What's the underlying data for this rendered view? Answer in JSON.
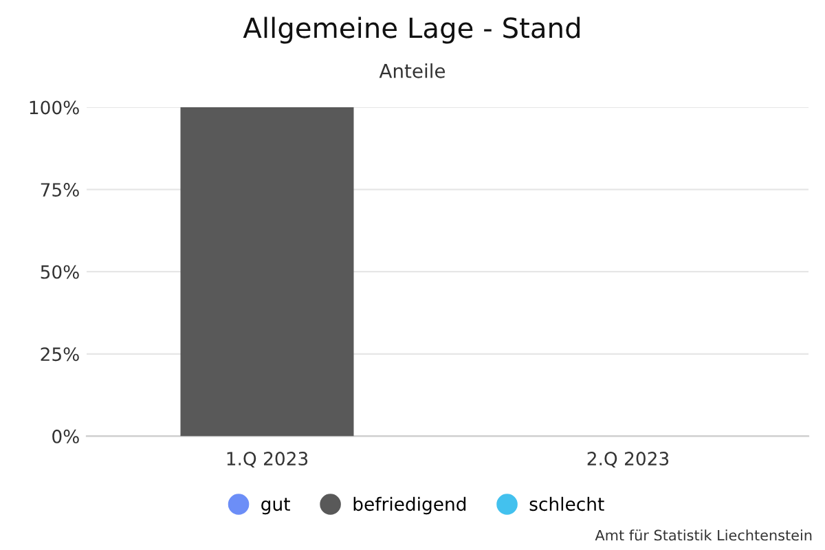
{
  "chart_data": {
    "type": "bar",
    "title": "Allgemeine Lage - Stand",
    "subtitle": "Anteile",
    "categories": [
      "1.Q 2023",
      "2.Q 2023"
    ],
    "series": [
      {
        "name": "gut",
        "color": "#6c8ef7",
        "values": [
          0,
          null
        ]
      },
      {
        "name": "befriedigend",
        "color": "#595959",
        "values": [
          100,
          null
        ]
      },
      {
        "name": "schlecht",
        "color": "#43c1ee",
        "values": [
          0,
          null
        ]
      }
    ],
    "stacked": true,
    "ylim": [
      0,
      100
    ],
    "yticks": [
      {
        "value": 0,
        "label": "0%"
      },
      {
        "value": 25,
        "label": "25%"
      },
      {
        "value": 50,
        "label": "50%"
      },
      {
        "value": 75,
        "label": "75%"
      },
      {
        "value": 100,
        "label": "100%"
      }
    ],
    "grid": "y",
    "legend": "bottom",
    "annotations": [
      "Amt für Statistik Liechtenstein"
    ]
  }
}
